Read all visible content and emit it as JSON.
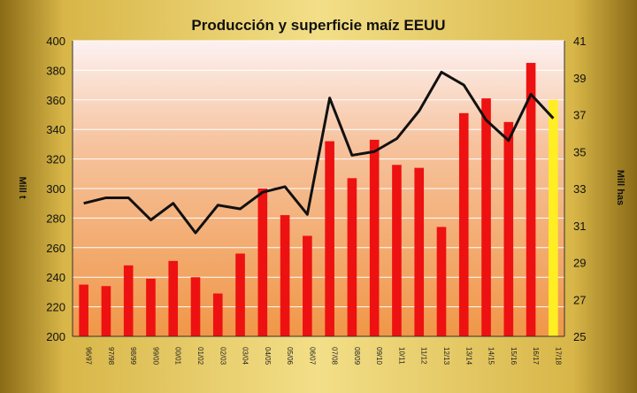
{
  "chart_data": {
    "type": "bar",
    "title": "Producción y superficie maíz EEUU",
    "categories": [
      "96/97",
      "97/98",
      "98/99",
      "99/00",
      "00/01",
      "01/02",
      "02/03",
      "03/04",
      "04/05",
      "05/06",
      "06/07",
      "07/08",
      "08/09",
      "09/10",
      "10/11",
      "11/12",
      "12/13",
      "13/14",
      "14/15",
      "15/16",
      "16/17",
      "17/18"
    ],
    "series": [
      {
        "axis": "left",
        "kind": "bar",
        "color": "#ee1111",
        "highlight": {
          "index": 21,
          "color": "#ffee22"
        },
        "values": [
          235,
          234,
          248,
          239,
          251,
          240,
          229,
          256,
          300,
          282,
          268,
          332,
          307,
          333,
          316,
          314,
          274,
          351,
          361,
          345,
          385,
          360
        ]
      },
      {
        "axis": "right",
        "kind": "line",
        "color": "#111111",
        "values": [
          32.2,
          32.5,
          32.5,
          31.3,
          32.2,
          30.6,
          32.1,
          31.9,
          32.8,
          33.1,
          31.6,
          37.9,
          34.8,
          35.0,
          35.7,
          37.2,
          39.3,
          38.6,
          36.7,
          35.6,
          38.1,
          36.8
        ]
      }
    ],
    "ylim": [
      200,
      400
    ],
    "yticks": [
      200,
      220,
      240,
      260,
      280,
      300,
      320,
      340,
      360,
      380,
      400
    ],
    "y2lim": [
      25,
      41
    ],
    "y2ticks": [
      25,
      27,
      29,
      31,
      33,
      35,
      37,
      39,
      41
    ],
    "ylabel": "Mill t",
    "y2label": "Mill has",
    "grid": true
  },
  "colors": {
    "plot_top": "#fdf1f1",
    "plot_mid": "#f6c39e",
    "plot_bottom": "#f09748",
    "grid": "#ffffff",
    "axis": "#333333"
  }
}
